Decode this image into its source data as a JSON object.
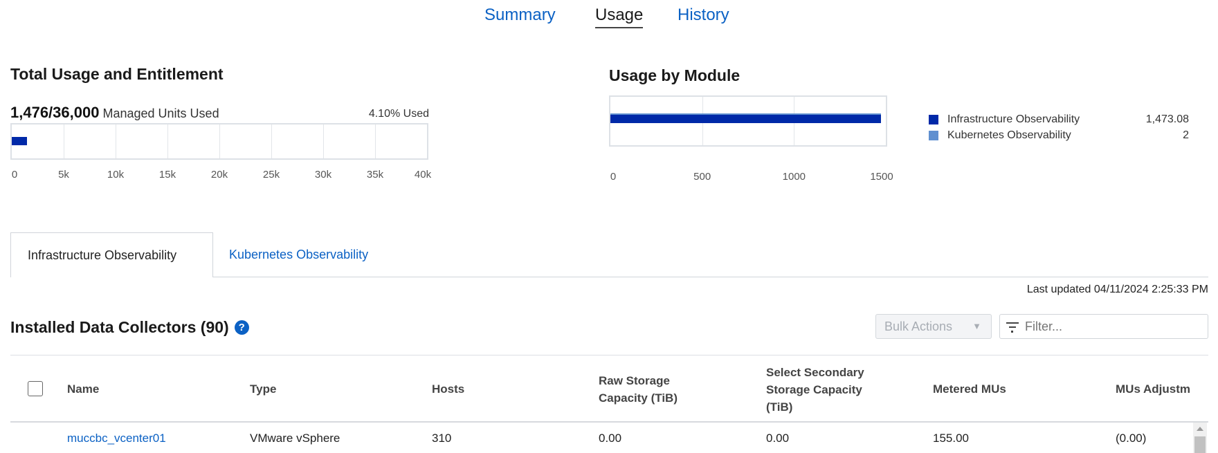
{
  "top_tabs": [
    {
      "label": "Summary",
      "active": false
    },
    {
      "label": "Usage",
      "active": true
    },
    {
      "label": "History",
      "active": false
    }
  ],
  "total": {
    "title": "Total Usage and Entitlement",
    "used_value": "1,476/36,000",
    "used_label": "Managed Units Used",
    "percent_label": "4.10% Used",
    "chart_data": {
      "type": "bar",
      "orientation": "horizontal",
      "values": [
        1476
      ],
      "xlim": [
        0,
        40000
      ],
      "ticks": [
        "0",
        "5k",
        "10k",
        "15k",
        "20k",
        "25k",
        "30k",
        "35k",
        "40k"
      ],
      "tick_values": [
        0,
        5000,
        10000,
        15000,
        20000,
        25000,
        30000,
        35000,
        40000
      ],
      "grid": true,
      "color": "#0029a8"
    }
  },
  "module": {
    "title": "Usage by Module",
    "chart_data": {
      "type": "bar",
      "orientation": "horizontal",
      "stacked": true,
      "xlim": [
        0,
        1500
      ],
      "ticks": [
        "0",
        "500",
        "1000",
        "1500"
      ],
      "tick_values": [
        0,
        500,
        1000,
        1500
      ],
      "grid": true,
      "legend_position": "right",
      "series": [
        {
          "name": "Infrastructure Observability",
          "value": 1473.08,
          "display": "1,473.08",
          "color": "#0029a8"
        },
        {
          "name": "Kubernetes Observability",
          "value": 2,
          "display": "2",
          "color": "#6090d0"
        }
      ]
    }
  },
  "section_tabs": [
    {
      "label": "Infrastructure Observability",
      "active": true
    },
    {
      "label": "Kubernetes Observability",
      "active": false
    }
  ],
  "last_updated": "Last updated 04/11/2024 2:25:33 PM",
  "collectors": {
    "title": "Installed Data Collectors (90)",
    "help_icon": "question-circle-icon",
    "bulk_actions": "Bulk Actions",
    "filter_placeholder": "Filter...",
    "columns": [
      "Name",
      "Type",
      "Hosts",
      "Raw Storage Capacity (TiB)",
      "Select Secondary Storage Capacity (TiB)",
      "Metered MUs",
      "MUs Adjustmen"
    ],
    "rows": [
      [
        "muccbc_vcenter01",
        "VMware vSphere",
        "310",
        "0.00",
        "0.00",
        "155.00",
        "(0.00)"
      ]
    ]
  }
}
